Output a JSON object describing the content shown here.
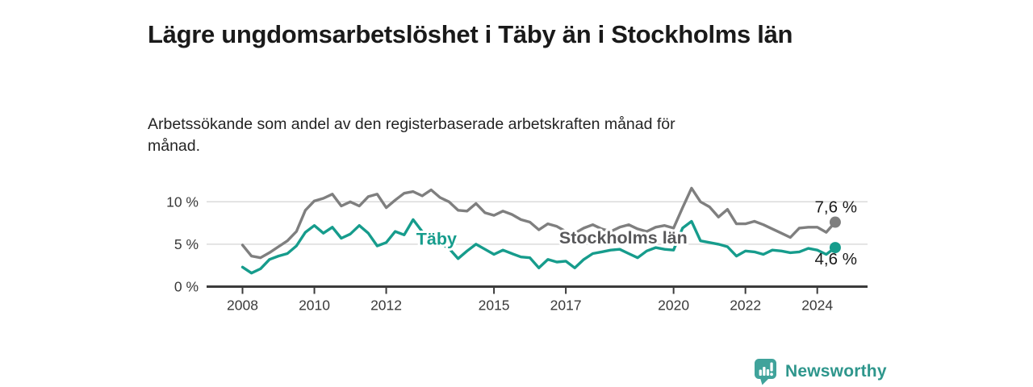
{
  "footer": {
    "brand": "Newsworthy"
  },
  "colors": {
    "taby_line": "#169C8C",
    "stockholm_line": "#7F7F7F",
    "stockholm_label": "#58585A",
    "grid": "#DBDBDB",
    "axis": "#3B3B3B",
    "tick_text": "#3A3A3A",
    "end_label_text": "#191919",
    "brand_text": "#2E968C",
    "brand_icon": "#40A39B"
  },
  "chart_data": {
    "type": "line",
    "title": "Lägre ungdomsarbetslöshet i Täby än i Stockholms län",
    "subtitle": "Arbetssökande som andel av den registerbaserade arbetskraften månad för månad.",
    "xlabel": "",
    "ylabel": "",
    "grid": "horizontal",
    "legend_position": "inline-labels",
    "xlim": [
      2007.0,
      2025.4
    ],
    "ylim": [
      0,
      12.4
    ],
    "x_ticks": [
      {
        "v": 2008,
        "label": "2008"
      },
      {
        "v": 2010,
        "label": "2010"
      },
      {
        "v": 2012,
        "label": "2012"
      },
      {
        "v": 2015,
        "label": "2015"
      },
      {
        "v": 2017,
        "label": "2017"
      },
      {
        "v": 2020,
        "label": "2020"
      },
      {
        "v": 2022,
        "label": "2022"
      },
      {
        "v": 2024,
        "label": "2024"
      }
    ],
    "y_ticks": [
      {
        "v": 0,
        "label": "0 %"
      },
      {
        "v": 5,
        "label": "5 %"
      },
      {
        "v": 10,
        "label": "10 %"
      }
    ],
    "x_start": 2008.0,
    "x_step": 0.25,
    "series": [
      {
        "id": "stockholms-lan",
        "name": "Stockholms län",
        "color": "#7F7F7F",
        "label_color": "#58585A",
        "inline_label": {
          "text": "Stockholms län",
          "x": 2018.6,
          "y": 5.75
        },
        "end_label": "7,6 %",
        "end_label_pos": "above",
        "last_value": 7.6,
        "values": [
          4.9,
          3.6,
          3.4,
          4.0,
          4.7,
          5.4,
          6.5,
          9.0,
          10.1,
          10.4,
          10.9,
          9.5,
          10.0,
          9.5,
          10.6,
          10.9,
          9.3,
          10.2,
          11.0,
          11.2,
          10.7,
          11.4,
          10.5,
          10.0,
          9.0,
          8.9,
          9.8,
          8.7,
          8.4,
          8.9,
          8.5,
          7.9,
          7.6,
          6.7,
          7.4,
          7.1,
          6.5,
          6.3,
          6.9,
          7.3,
          6.8,
          6.5,
          7.0,
          7.3,
          6.8,
          6.5,
          7.0,
          7.2,
          6.9,
          9.3,
          11.6,
          10.0,
          9.4,
          8.2,
          9.1,
          7.4,
          7.4,
          7.7,
          7.3,
          6.8,
          6.3,
          5.8,
          6.9,
          7.0,
          7.0,
          6.4,
          7.6
        ]
      },
      {
        "id": "taby",
        "name": "Täby",
        "color": "#169C8C",
        "label_color": "#169C8C",
        "inline_label": {
          "text": "Täby",
          "x": 2013.4,
          "y": 5.6
        },
        "end_label": "4,6 %",
        "end_label_pos": "below",
        "last_value": 4.6,
        "values": [
          2.3,
          1.6,
          2.1,
          3.2,
          3.6,
          3.9,
          4.8,
          6.4,
          7.2,
          6.3,
          7.0,
          5.7,
          6.2,
          7.2,
          6.3,
          4.8,
          5.2,
          6.5,
          6.1,
          7.9,
          6.5,
          5.8,
          5.1,
          4.5,
          3.3,
          4.2,
          5.0,
          4.4,
          3.8,
          4.3,
          3.9,
          3.5,
          3.4,
          2.2,
          3.2,
          2.9,
          3.0,
          2.2,
          3.2,
          3.9,
          4.1,
          4.3,
          4.4,
          3.9,
          3.4,
          4.2,
          4.6,
          4.4,
          4.3,
          6.9,
          7.7,
          5.4,
          5.2,
          5.0,
          4.7,
          3.6,
          4.2,
          4.1,
          3.8,
          4.3,
          4.2,
          4.0,
          4.1,
          4.5,
          4.3,
          3.8,
          4.6
        ]
      }
    ]
  }
}
